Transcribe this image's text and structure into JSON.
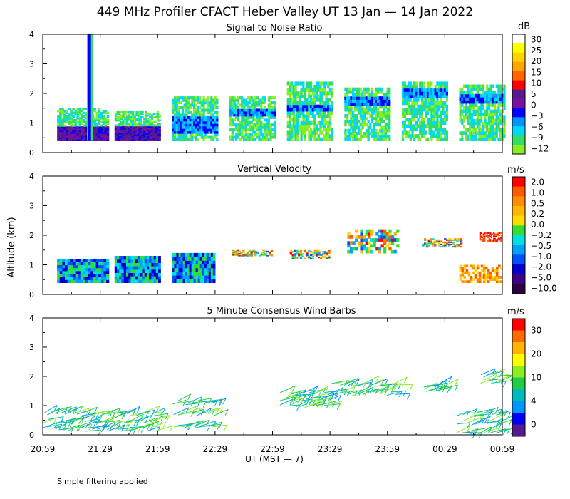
{
  "title": "449 MHz Profiler CFACT Heber Valley UT 13 Jan — 14 Jan 2022",
  "ylabel": "Altitude (km)",
  "xlabel": "UT  (MST — 7)",
  "footnote": "Simple filtering applied",
  "x_ticks": [
    "20:59",
    "21:29",
    "21:59",
    "22:29",
    "22:59",
    "23:29",
    "23:59",
    "00:29",
    "00:59"
  ],
  "y_ticks": [
    "0",
    "1",
    "2",
    "3",
    "4"
  ],
  "chart_data": [
    {
      "type": "heatmap",
      "title": "Signal to Noise Ratio",
      "unit": "dB",
      "ylim": [
        0,
        4
      ],
      "colorbar_ticks": [
        "30",
        "25",
        "20",
        "15",
        "10",
        "5",
        "0",
        "−3",
        "−6",
        "−9",
        "−12"
      ],
      "colors": [
        "#ffffff",
        "#ffff00",
        "#ffd200",
        "#ffa500",
        "#ff6400",
        "#ff0000",
        "#551a8b",
        "#7a10a0",
        "#0000ff",
        "#0096ff",
        "#00d8ff",
        "#33dd66",
        "#88ee22"
      ],
      "blocks": [
        {
          "x0": 0.25,
          "x1": 1.15,
          "base": 0.4,
          "top": 1.5,
          "core": [
            0.4,
            0.8
          ]
        },
        {
          "x0": 1.25,
          "x1": 2.05,
          "base": 0.4,
          "top": 1.4,
          "core": [
            0.4,
            0.8
          ]
        },
        {
          "x0": 2.25,
          "x1": 3.05,
          "base": 0.4,
          "top": 1.9,
          "core": [
            0.6,
            1.2
          ]
        },
        {
          "x0": 3.25,
          "x1": 4.05,
          "base": 0.4,
          "top": 1.9,
          "core": [
            1.2,
            1.4
          ]
        },
        {
          "x0": 4.25,
          "x1": 5.05,
          "base": 0.4,
          "top": 2.4,
          "core": [
            1.4,
            1.6
          ]
        },
        {
          "x0": 5.25,
          "x1": 6.05,
          "base": 0.4,
          "top": 2.2,
          "core": [
            1.6,
            1.9
          ]
        },
        {
          "x0": 6.25,
          "x1": 7.05,
          "base": 0.4,
          "top": 2.4,
          "core": [
            1.8,
            2.1
          ]
        },
        {
          "x0": 7.25,
          "x1": 8.05,
          "base": 0.4,
          "top": 2.3,
          "core": [
            1.6,
            1.9
          ]
        }
      ]
    },
    {
      "type": "heatmap",
      "title": "Vertical Velocity",
      "unit": "m/s",
      "ylim": [
        0,
        4
      ],
      "colorbar_ticks": [
        "2.0",
        "1.0",
        "0.5",
        "0.2",
        "0.0",
        "−0.2",
        "−0.5",
        "−1.0",
        "−2.0",
        "−5.0",
        "−10.0"
      ],
      "colors": [
        "#ff0000",
        "#ff5a00",
        "#ff8c00",
        "#ffb400",
        "#ffdc00",
        "#33dd33",
        "#00e0e0",
        "#00a0ff",
        "#0050ff",
        "#0000cc",
        "#400080",
        "#2a0040"
      ],
      "blocks": [
        {
          "x0": 0.25,
          "x1": 1.15,
          "base": 0.4,
          "top": 1.2
        },
        {
          "x0": 1.25,
          "x1": 2.05,
          "base": 0.4,
          "top": 1.3
        },
        {
          "x0": 2.25,
          "x1": 3.0,
          "base": 0.4,
          "top": 1.4
        },
        {
          "x0": 3.3,
          "x1": 4.0,
          "base": 1.3,
          "top": 1.5
        },
        {
          "x0": 4.3,
          "x1": 5.0,
          "base": 1.2,
          "top": 1.5
        },
        {
          "x0": 5.3,
          "x1": 6.2,
          "base": 1.4,
          "top": 2.2
        },
        {
          "x0": 6.6,
          "x1": 7.3,
          "base": 1.6,
          "top": 1.9
        },
        {
          "x0": 7.25,
          "x1": 8.0,
          "base": 0.4,
          "top": 1.0
        },
        {
          "x0": 7.6,
          "x1": 8.0,
          "base": 1.8,
          "top": 2.1
        }
      ]
    },
    {
      "type": "scatter",
      "title": "5 Minute Consensus Wind Barbs",
      "unit": "m/s",
      "ylim": [
        0,
        4
      ],
      "colorbar_ticks": [
        "30",
        "20",
        "10",
        "4",
        "0"
      ],
      "colors": [
        "#ff0000",
        "#ff6a00",
        "#ffb400",
        "#ffff00",
        "#88ee22",
        "#22cc44",
        "#00bbbb",
        "#0096ff",
        "#0000ff",
        "#551a8b"
      ],
      "barb_groups": [
        {
          "x0": 0.0,
          "x1": 2.0,
          "alts": [
            0.2,
            0.45,
            0.7
          ],
          "speed": 8
        },
        {
          "x0": 2.25,
          "x1": 3.0,
          "alts": [
            0.3,
            0.7,
            1.1
          ],
          "speed": 6
        },
        {
          "x0": 4.1,
          "x1": 5.0,
          "alts": [
            1.0,
            1.2,
            1.4
          ],
          "speed": 11
        },
        {
          "x0": 5.0,
          "x1": 6.2,
          "alts": [
            1.4,
            1.7
          ],
          "speed": 12
        },
        {
          "x0": 6.6,
          "x1": 7.0,
          "alts": [
            1.5,
            1.7
          ],
          "speed": 12
        },
        {
          "x0": 7.2,
          "x1": 8.0,
          "alts": [
            0.1,
            0.4,
            0.7
          ],
          "speed": 9
        },
        {
          "x0": 7.6,
          "x1": 8.0,
          "alts": [
            1.8,
            2.0
          ],
          "speed": 13
        }
      ]
    }
  ]
}
